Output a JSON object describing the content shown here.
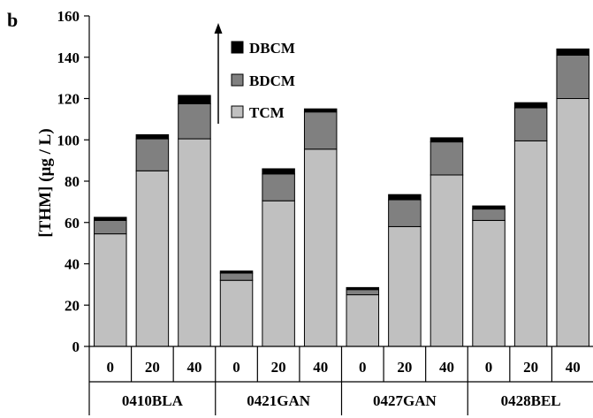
{
  "panel_label": "b",
  "colors": {
    "TCM": "#c0c0c0",
    "BDCM": "#808080",
    "DBCM": "#000000"
  },
  "chart_data": {
    "type": "bar",
    "stacked": true,
    "ylabel": "[THM] (µg / L)",
    "ylim": [
      0,
      160
    ],
    "yticks": [
      0,
      20,
      40,
      60,
      80,
      100,
      120,
      140,
      160
    ],
    "grid": false,
    "legend_position": "top-center",
    "legend_order": [
      "DBCM",
      "BDCM",
      "TCM"
    ],
    "groups": [
      "0410BLA",
      "0421GAN",
      "0427GAN",
      "0428BEL"
    ],
    "categories": [
      "0",
      "20",
      "40",
      "0",
      "20",
      "40",
      "0",
      "20",
      "40",
      "0",
      "20",
      "40"
    ],
    "series": [
      {
        "name": "TCM",
        "values": [
          54.5,
          85,
          100.5,
          32,
          70.5,
          95.5,
          25,
          58,
          83,
          61,
          99.5,
          120
        ]
      },
      {
        "name": "BDCM",
        "values": [
          6.5,
          15.5,
          17,
          3.5,
          13,
          18,
          2.5,
          13,
          16,
          5.5,
          16,
          21
        ]
      },
      {
        "name": "DBCM",
        "values": [
          1.5,
          2,
          4,
          1,
          2.5,
          1.5,
          1,
          2.5,
          2,
          1.5,
          2.5,
          3
        ]
      }
    ]
  }
}
